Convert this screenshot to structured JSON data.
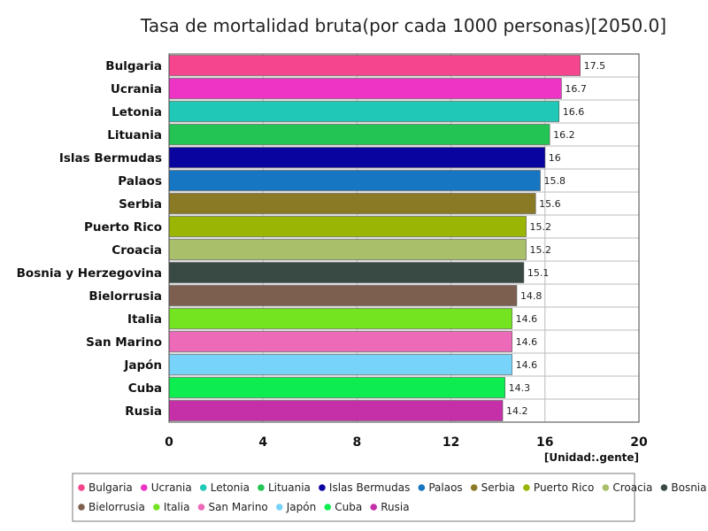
{
  "chart_data": {
    "type": "bar",
    "orientation": "horizontal",
    "title": "Tasa de mortalidad bruta(por cada 1000 personas)[2050.0]",
    "unit_label": "[Unidad:.gente]",
    "categories": [
      "Bulgaria",
      "Ucrania",
      "Letonia",
      "Lituania",
      "Islas Bermudas",
      "Palaos",
      "Serbia",
      "Puerto Rico",
      "Croacia",
      "Bosnia y Herzegovina",
      "Bielorrusia",
      "Italia",
      "San Marino",
      "Japón",
      "Cuba",
      "Rusia"
    ],
    "values": [
      17.5,
      16.7,
      16.6,
      16.2,
      16,
      15.8,
      15.6,
      15.2,
      15.2,
      15.1,
      14.8,
      14.6,
      14.6,
      14.6,
      14.3,
      14.2
    ],
    "value_labels": [
      "17.5",
      "16.7",
      "16.6",
      "16.2",
      "16",
      "15.8",
      "15.6",
      "15.2",
      "15.2",
      "15.1",
      "14.8",
      "14.6",
      "14.6",
      "14.6",
      "14.3",
      "14.2"
    ],
    "colors": [
      "#f5458f",
      "#ee34c4",
      "#20c9b7",
      "#23c454",
      "#0a049e",
      "#1776c2",
      "#8a7a25",
      "#9bb504",
      "#a9bf6a",
      "#394a45",
      "#7d5f50",
      "#74e421",
      "#ec6ab7",
      "#78d3fa",
      "#0ded4f",
      "#c530a8"
    ],
    "xlim": [
      0,
      20
    ],
    "xticks": [
      "0",
      "4",
      "8",
      "12",
      "16",
      "20"
    ],
    "grid": true,
    "legend_position": "bottom"
  }
}
